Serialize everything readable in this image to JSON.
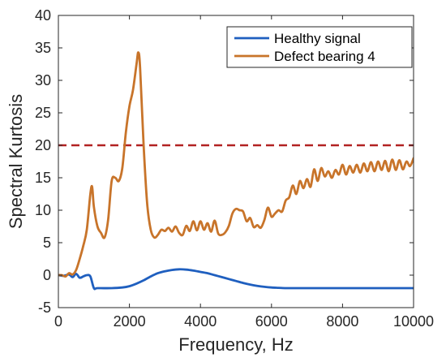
{
  "chart_data": {
    "type": "line",
    "xlabel": "Frequency, Hz",
    "ylabel": "Spectral Kurtosis",
    "xlim": [
      0,
      10000
    ],
    "ylim": [
      -5,
      40
    ],
    "xticks": [
      0,
      2000,
      4000,
      6000,
      8000,
      10000
    ],
    "yticks": [
      -5,
      0,
      5,
      10,
      15,
      20,
      25,
      30,
      35,
      40
    ],
    "grid": false,
    "legend_position": "top-right",
    "threshold": {
      "value": 20,
      "style": "dashed",
      "color": "#b22222"
    },
    "series": [
      {
        "name": "Healthy signal",
        "color": "#1f5fbf",
        "x": [
          0,
          150,
          300,
          400,
          500,
          600,
          700,
          800,
          900,
          1000,
          1100,
          1500,
          1800,
          2000,
          2200,
          2400,
          2600,
          2800,
          3000,
          3200,
          3400,
          3600,
          3800,
          4000,
          4200,
          4400,
          4600,
          4800,
          5000,
          5200,
          5400,
          5600,
          5800,
          6000,
          6200,
          6400,
          6600,
          7000,
          8000,
          9000,
          10000
        ],
        "y": [
          0,
          -0.1,
          0.1,
          -0.3,
          0.2,
          -0.4,
          -0.2,
          0.0,
          -0.2,
          -2.0,
          -2.0,
          -2.0,
          -1.9,
          -1.7,
          -1.3,
          -0.8,
          -0.2,
          0.3,
          0.6,
          0.8,
          0.9,
          0.85,
          0.7,
          0.5,
          0.3,
          0.0,
          -0.3,
          -0.6,
          -0.9,
          -1.2,
          -1.45,
          -1.65,
          -1.8,
          -1.9,
          -1.95,
          -2.0,
          -2.0,
          -2.0,
          -2.0,
          -2.0,
          -2.0
        ]
      },
      {
        "name": "Defect bearing 4",
        "color": "#c8742a",
        "x": [
          0,
          100,
          200,
          300,
          400,
          500,
          600,
          700,
          800,
          900,
          950,
          1000,
          1100,
          1200,
          1300,
          1400,
          1500,
          1600,
          1700,
          1800,
          1900,
          2000,
          2100,
          2200,
          2250,
          2300,
          2400,
          2500,
          2600,
          2700,
          2800,
          2900,
          3000,
          3100,
          3200,
          3300,
          3400,
          3500,
          3600,
          3700,
          3800,
          3900,
          4000,
          4100,
          4200,
          4300,
          4400,
          4500,
          4600,
          4700,
          4800,
          4900,
          5000,
          5100,
          5200,
          5300,
          5400,
          5500,
          5600,
          5700,
          5800,
          5900,
          6000,
          6100,
          6200,
          6300,
          6400,
          6500,
          6600,
          6700,
          6800,
          6900,
          7000,
          7100,
          7200,
          7300,
          7400,
          7500,
          7600,
          7700,
          7800,
          7900,
          8000,
          8100,
          8200,
          8300,
          8400,
          8500,
          8600,
          8700,
          8800,
          8900,
          9000,
          9100,
          9200,
          9300,
          9400,
          9500,
          9600,
          9700,
          9800,
          9900,
          10000
        ],
        "y": [
          0,
          0,
          -0.2,
          0.3,
          0.1,
          0.8,
          2.5,
          4.5,
          7.0,
          12.5,
          13.6,
          10.5,
          7.5,
          6.5,
          5.8,
          8.5,
          14.5,
          15.0,
          14.5,
          16.5,
          22.0,
          26.0,
          28.5,
          32.5,
          34.3,
          32.0,
          20.0,
          11.0,
          7.0,
          5.8,
          6.2,
          7.0,
          6.8,
          7.3,
          6.7,
          7.5,
          6.5,
          6.2,
          7.6,
          6.8,
          8.3,
          6.9,
          8.3,
          7.0,
          8.0,
          6.7,
          8.4,
          6.4,
          6.2,
          6.6,
          7.6,
          9.5,
          10.2,
          10.0,
          9.8,
          8.3,
          8.8,
          7.4,
          7.7,
          7.3,
          8.5,
          10.4,
          9.0,
          9.5,
          10.0,
          9.8,
          11.5,
          12.0,
          13.8,
          12.5,
          14.5,
          13.4,
          14.8,
          13.6,
          16.3,
          14.5,
          16.5,
          15.2,
          16.0,
          15.0,
          16.2,
          15.5,
          17.0,
          15.5,
          16.8,
          15.8,
          17.0,
          15.8,
          17.2,
          16.0,
          17.4,
          16.0,
          17.5,
          16.2,
          17.6,
          16.0,
          17.8,
          16.2,
          17.7,
          16.3,
          17.5,
          16.8,
          18.0
        ]
      }
    ]
  }
}
